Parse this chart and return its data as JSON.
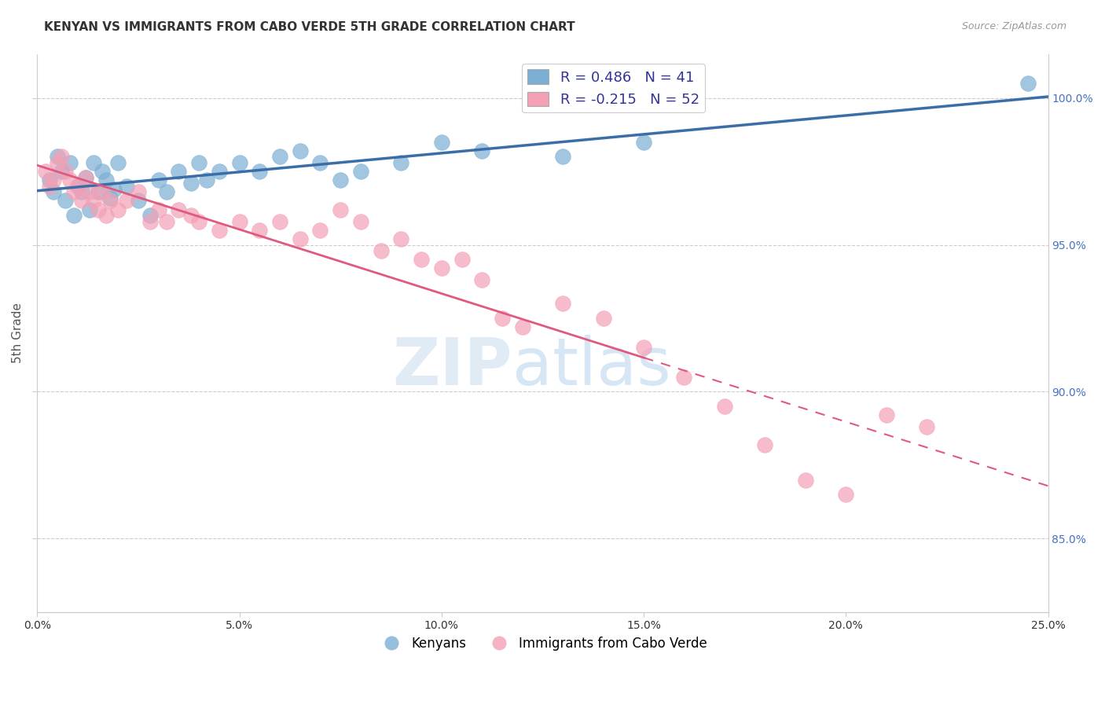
{
  "title": "KENYAN VS IMMIGRANTS FROM CABO VERDE 5TH GRADE CORRELATION CHART",
  "source": "Source: ZipAtlas.com",
  "ylabel": "5th Grade",
  "xlabel_vals": [
    0.0,
    5.0,
    10.0,
    15.0,
    20.0,
    25.0
  ],
  "ylabel_vals": [
    85.0,
    90.0,
    95.0,
    100.0
  ],
  "ylabel_ticks": [
    "85.0%",
    "90.0%",
    "95.0%",
    "100.0%"
  ],
  "xlim": [
    0.0,
    25.0
  ],
  "ylim": [
    82.5,
    101.5
  ],
  "blue_R": 0.486,
  "blue_N": 41,
  "pink_R": -0.215,
  "pink_N": 52,
  "blue_color": "#7BAFD4",
  "pink_color": "#F4A0B5",
  "blue_line_color": "#3B6EA8",
  "pink_line_color": "#E05A80",
  "blue_scatter_x": [
    0.3,
    0.4,
    0.5,
    0.6,
    0.7,
    0.8,
    0.9,
    1.0,
    1.1,
    1.2,
    1.3,
    1.4,
    1.5,
    1.6,
    1.7,
    1.8,
    1.9,
    2.0,
    2.2,
    2.5,
    2.8,
    3.0,
    3.2,
    3.5,
    3.8,
    4.0,
    4.2,
    4.5,
    5.0,
    5.5,
    6.0,
    6.5,
    7.0,
    7.5,
    8.0,
    9.0,
    10.0,
    11.0,
    13.0,
    15.0,
    24.5
  ],
  "blue_scatter_y": [
    97.2,
    96.8,
    98.0,
    97.5,
    96.5,
    97.8,
    96.0,
    97.0,
    96.8,
    97.3,
    96.2,
    97.8,
    96.8,
    97.5,
    97.2,
    96.6,
    96.9,
    97.8,
    97.0,
    96.5,
    96.0,
    97.2,
    96.8,
    97.5,
    97.1,
    97.8,
    97.2,
    97.5,
    97.8,
    97.5,
    98.0,
    98.2,
    97.8,
    97.2,
    97.5,
    97.8,
    98.5,
    98.2,
    98.0,
    98.5,
    100.5
  ],
  "pink_scatter_x": [
    0.2,
    0.3,
    0.4,
    0.5,
    0.6,
    0.7,
    0.8,
    0.9,
    1.0,
    1.1,
    1.2,
    1.3,
    1.4,
    1.5,
    1.6,
    1.7,
    1.8,
    2.0,
    2.2,
    2.5,
    2.8,
    3.0,
    3.2,
    3.5,
    3.8,
    4.0,
    4.5,
    5.0,
    5.5,
    6.0,
    6.5,
    7.0,
    7.5,
    8.0,
    8.5,
    9.0,
    9.5,
    10.0,
    10.5,
    11.0,
    11.5,
    12.0,
    13.0,
    14.0,
    15.0,
    16.0,
    17.0,
    18.0,
    19.0,
    20.0,
    21.0,
    22.0
  ],
  "pink_scatter_y": [
    97.5,
    97.0,
    97.2,
    97.8,
    98.0,
    97.5,
    97.2,
    96.8,
    97.0,
    96.5,
    97.3,
    96.8,
    96.5,
    96.2,
    96.8,
    96.0,
    96.5,
    96.2,
    96.5,
    96.8,
    95.8,
    96.2,
    95.8,
    96.2,
    96.0,
    95.8,
    95.5,
    95.8,
    95.5,
    95.8,
    95.2,
    95.5,
    96.2,
    95.8,
    94.8,
    95.2,
    94.5,
    94.2,
    94.5,
    93.8,
    92.5,
    92.2,
    93.0,
    92.5,
    91.5,
    90.5,
    89.5,
    88.2,
    87.0,
    86.5,
    89.2,
    88.8
  ],
  "watermark_zip": "ZIP",
  "watermark_atlas": "atlas",
  "legend_blue_label": "Kenyans",
  "legend_pink_label": "Immigrants from Cabo Verde",
  "pink_solid_end": 15.0
}
